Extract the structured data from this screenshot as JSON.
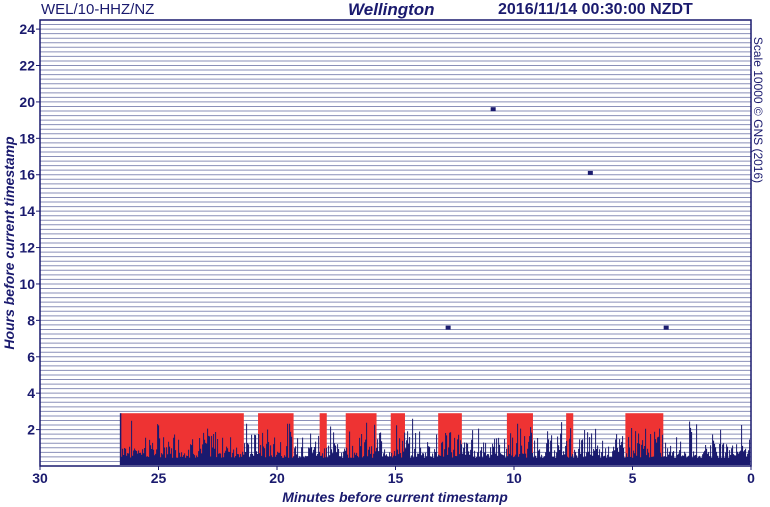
{
  "header": {
    "station": "WEL/10-HHZ/NZ",
    "place": "Wellington",
    "timestamp": "2016/11/14 00:30:00 NZDT"
  },
  "side_note": "Scale 10000 © GNS (2016)",
  "colors": {
    "text": "#1a1a6e",
    "trace": "#1a1a6e",
    "clipped": "#ee3333",
    "gridline": "#8a8fb8"
  },
  "chart_data": {
    "type": "heatmap",
    "title": "Wellington",
    "xlabel": "Minutes before current timestamp",
    "ylabel": "Hours before current timestamp",
    "xlim": [
      30,
      0
    ],
    "ylim": [
      0,
      24.5
    ],
    "x_ticks": [
      "30",
      "25",
      "20",
      "15",
      "10",
      "5",
      "0"
    ],
    "y_ticks": [
      "2",
      "4",
      "6",
      "8",
      "10",
      "12",
      "14",
      "16",
      "18",
      "20",
      "22",
      "24"
    ],
    "trace_interval_minutes": 15,
    "active_trace_start_minutes_before": 26.6,
    "clipped_intervals_minutes_before": [
      [
        26.6,
        21.4
      ],
      [
        20.8,
        19.3
      ],
      [
        18.2,
        17.9
      ],
      [
        17.1,
        15.8
      ],
      [
        15.2,
        14.6
      ],
      [
        13.2,
        12.2
      ],
      [
        10.3,
        9.2
      ],
      [
        7.8,
        7.5
      ],
      [
        5.3,
        3.7
      ]
    ],
    "events": [
      {
        "minutes_before": 10.9,
        "hours_before": 19.6
      },
      {
        "minutes_before": 6.8,
        "hours_before": 16.1
      },
      {
        "minutes_before": 3.6,
        "hours_before": 7.6
      },
      {
        "minutes_before": 12.8,
        "hours_before": 7.6
      }
    ]
  }
}
